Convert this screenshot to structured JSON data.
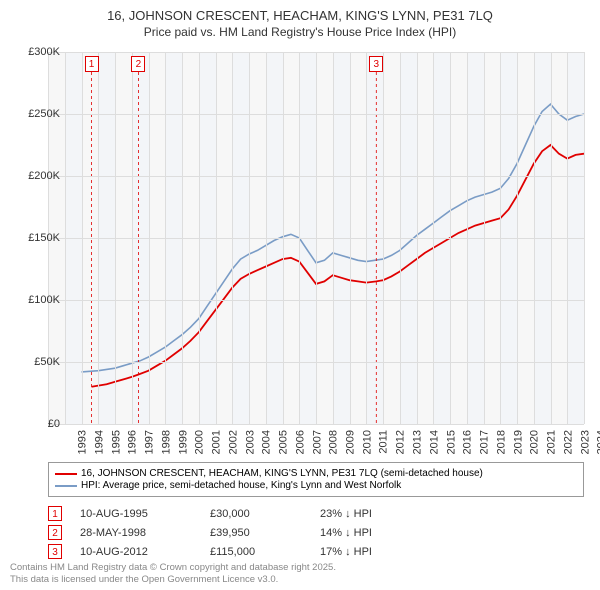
{
  "title": {
    "main": "16, JOHNSON CRESCENT, HEACHAM, KING'S LYNN, PE31 7LQ",
    "sub": "Price paid vs. HM Land Registry's House Price Index (HPI)",
    "fontsize_main": 13,
    "fontsize_sub": 12,
    "color": "#333333"
  },
  "chart": {
    "type": "line",
    "background_color": "#f7f7f7",
    "grid_color": "#dddddd",
    "x_axis": {
      "min_year": 1993,
      "max_year": 2025,
      "ticks": [
        1993,
        1994,
        1995,
        1996,
        1997,
        1998,
        1999,
        2000,
        2001,
        2002,
        2003,
        2004,
        2005,
        2006,
        2007,
        2008,
        2009,
        2010,
        2011,
        2012,
        2013,
        2014,
        2015,
        2016,
        2017,
        2018,
        2019,
        2020,
        2021,
        2022,
        2023,
        2024,
        2025
      ],
      "label_fontsize": 11
    },
    "y_axis": {
      "min": 0,
      "max": 300000,
      "tick_step": 50000,
      "tick_labels": [
        "£0",
        "£50K",
        "£100K",
        "£150K",
        "£200K",
        "£250K",
        "£300K"
      ],
      "label_fontsize": 11
    },
    "alt_bands": {
      "color": "#eaf1f8",
      "years": [
        1994,
        1996,
        1998,
        2000,
        2002,
        2004,
        2006,
        2008,
        2010,
        2012,
        2014,
        2016,
        2018,
        2020,
        2022,
        2024
      ]
    },
    "series": [
      {
        "name": "HPI: Average price, semi-detached house, King's Lynn and West Norfolk",
        "color": "#7a9cc6",
        "line_width": 1.6,
        "data": [
          [
            1995.0,
            42000
          ],
          [
            1995.5,
            42500
          ],
          [
            1996.0,
            43000
          ],
          [
            1996.5,
            44000
          ],
          [
            1997.0,
            45000
          ],
          [
            1997.5,
            47000
          ],
          [
            1998.0,
            49000
          ],
          [
            1998.5,
            51000
          ],
          [
            1999.0,
            54000
          ],
          [
            1999.5,
            58000
          ],
          [
            2000.0,
            62000
          ],
          [
            2000.5,
            67000
          ],
          [
            2001.0,
            72000
          ],
          [
            2001.5,
            78000
          ],
          [
            2002.0,
            85000
          ],
          [
            2002.5,
            95000
          ],
          [
            2003.0,
            105000
          ],
          [
            2003.5,
            115000
          ],
          [
            2004.0,
            125000
          ],
          [
            2004.5,
            133000
          ],
          [
            2005.0,
            137000
          ],
          [
            2005.5,
            140000
          ],
          [
            2006.0,
            144000
          ],
          [
            2006.5,
            148000
          ],
          [
            2007.0,
            151000
          ],
          [
            2007.5,
            153000
          ],
          [
            2008.0,
            150000
          ],
          [
            2008.5,
            140000
          ],
          [
            2009.0,
            130000
          ],
          [
            2009.5,
            132000
          ],
          [
            2010.0,
            138000
          ],
          [
            2010.5,
            136000
          ],
          [
            2011.0,
            134000
          ],
          [
            2011.5,
            132000
          ],
          [
            2012.0,
            131000
          ],
          [
            2012.5,
            132000
          ],
          [
            2013.0,
            133000
          ],
          [
            2013.5,
            136000
          ],
          [
            2014.0,
            140000
          ],
          [
            2014.5,
            146000
          ],
          [
            2015.0,
            152000
          ],
          [
            2015.5,
            157000
          ],
          [
            2016.0,
            162000
          ],
          [
            2016.5,
            167000
          ],
          [
            2017.0,
            172000
          ],
          [
            2017.5,
            176000
          ],
          [
            2018.0,
            180000
          ],
          [
            2018.5,
            183000
          ],
          [
            2019.0,
            185000
          ],
          [
            2019.5,
            187000
          ],
          [
            2020.0,
            190000
          ],
          [
            2020.5,
            198000
          ],
          [
            2021.0,
            210000
          ],
          [
            2021.5,
            225000
          ],
          [
            2022.0,
            240000
          ],
          [
            2022.5,
            252000
          ],
          [
            2023.0,
            258000
          ],
          [
            2023.5,
            250000
          ],
          [
            2024.0,
            245000
          ],
          [
            2024.5,
            248000
          ],
          [
            2025.0,
            250000
          ]
        ]
      },
      {
        "name": "16, JOHNSON CRESCENT, HEACHAM, KING'S LYNN, PE31 7LQ (semi-detached house)",
        "color": "#e00000",
        "line_width": 1.8,
        "data": [
          [
            1995.6,
            30000
          ],
          [
            1996.0,
            31000
          ],
          [
            1996.5,
            32000
          ],
          [
            1997.0,
            34000
          ],
          [
            1997.5,
            36000
          ],
          [
            1998.0,
            38000
          ],
          [
            1998.4,
            39950
          ],
          [
            1999.0,
            43000
          ],
          [
            1999.5,
            47000
          ],
          [
            2000.0,
            51000
          ],
          [
            2000.5,
            56000
          ],
          [
            2001.0,
            61000
          ],
          [
            2001.5,
            67000
          ],
          [
            2002.0,
            74000
          ],
          [
            2002.5,
            83000
          ],
          [
            2003.0,
            92000
          ],
          [
            2003.5,
            101000
          ],
          [
            2004.0,
            110000
          ],
          [
            2004.5,
            117000
          ],
          [
            2005.0,
            121000
          ],
          [
            2005.5,
            124000
          ],
          [
            2006.0,
            127000
          ],
          [
            2006.5,
            130000
          ],
          [
            2007.0,
            133000
          ],
          [
            2007.5,
            134000
          ],
          [
            2008.0,
            131000
          ],
          [
            2008.5,
            122000
          ],
          [
            2009.0,
            113000
          ],
          [
            2009.5,
            115000
          ],
          [
            2010.0,
            120000
          ],
          [
            2010.5,
            118000
          ],
          [
            2011.0,
            116000
          ],
          [
            2011.5,
            115000
          ],
          [
            2012.0,
            114000
          ],
          [
            2012.6,
            115000
          ],
          [
            2013.0,
            116000
          ],
          [
            2013.5,
            119000
          ],
          [
            2014.0,
            123000
          ],
          [
            2014.5,
            128000
          ],
          [
            2015.0,
            133000
          ],
          [
            2015.5,
            138000
          ],
          [
            2016.0,
            142000
          ],
          [
            2016.5,
            146000
          ],
          [
            2017.0,
            150000
          ],
          [
            2017.5,
            154000
          ],
          [
            2018.0,
            157000
          ],
          [
            2018.5,
            160000
          ],
          [
            2019.0,
            162000
          ],
          [
            2019.5,
            164000
          ],
          [
            2020.0,
            166000
          ],
          [
            2020.5,
            173000
          ],
          [
            2021.0,
            184000
          ],
          [
            2021.5,
            197000
          ],
          [
            2022.0,
            210000
          ],
          [
            2022.5,
            220000
          ],
          [
            2023.0,
            225000
          ],
          [
            2023.5,
            218000
          ],
          [
            2024.0,
            214000
          ],
          [
            2024.5,
            217000
          ],
          [
            2025.0,
            218000
          ]
        ]
      }
    ],
    "markers": [
      {
        "label": "1",
        "year": 1995.6,
        "color": "#e00000"
      },
      {
        "label": "2",
        "year": 1998.4,
        "color": "#e00000"
      },
      {
        "label": "3",
        "year": 2012.6,
        "color": "#e00000"
      }
    ]
  },
  "legend": {
    "items": [
      {
        "color": "#e00000",
        "label": "16, JOHNSON CRESCENT, HEACHAM, KING'S LYNN, PE31 7LQ (semi-detached house)"
      },
      {
        "color": "#7a9cc6",
        "label": "HPI: Average price, semi-detached house, King's Lynn and West Norfolk"
      }
    ],
    "fontsize": 10
  },
  "sales": [
    {
      "marker": "1",
      "color": "#e00000",
      "date": "10-AUG-1995",
      "price": "£30,000",
      "diff": "23% ↓ HPI"
    },
    {
      "marker": "2",
      "color": "#e00000",
      "date": "28-MAY-1998",
      "price": "£39,950",
      "diff": "14% ↓ HPI"
    },
    {
      "marker": "3",
      "color": "#e00000",
      "date": "10-AUG-2012",
      "price": "£115,000",
      "diff": "17% ↓ HPI"
    }
  ],
  "footer": {
    "line1": "Contains HM Land Registry data © Crown copyright and database right 2025.",
    "line2": "This data is licensed under the Open Government Licence v3.0.",
    "color": "#888888",
    "fontsize": 9.5
  }
}
